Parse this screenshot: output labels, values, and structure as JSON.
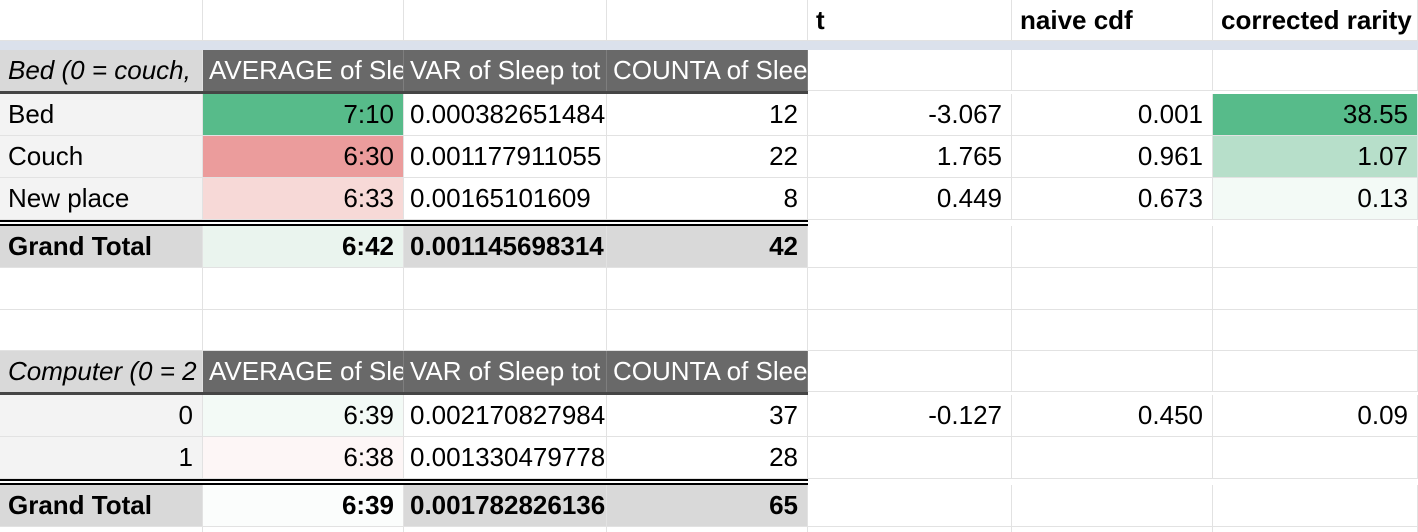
{
  "palette": {
    "pivot_header_bg": "#696969",
    "pivot_title_bg": "#d9d9d9",
    "row_label_bg": "#f3f3f3",
    "grand_total_bg": "#d9d9d9",
    "frozen_band": "#dbe1ec",
    "gridline": "#e2e2e2",
    "pivot_header_border": "#454545",
    "cf_green_strong": "#57bb8a",
    "cf_green_light": "#b7dfca",
    "cf_green_faint": "#eaf4ee",
    "cf_green_vfaint": "#f3faf6",
    "cf_pink_strong": "#eb9c9c",
    "cf_pink_light": "#f7d9d7",
    "cf_pink_vfaint": "#fdf6f6",
    "cf_white_green": "#fbfdfc"
  },
  "stats_columns": {
    "t": "t",
    "naive_cdf": "naive cdf",
    "corrected_rarity": "corrected rarity"
  },
  "pivot1": {
    "title": "Bed (0 = couch,",
    "col_headers": [
      "AVERAGE of Sle",
      "VAR of Sleep tot",
      "COUNTA of Slee"
    ],
    "rows": [
      {
        "label": "Bed",
        "avg": "7:10",
        "variance": "0.000382651484",
        "count": "12",
        "t": "-3.067",
        "naive_cdf": "0.001",
        "corrected_rarity": "38.55"
      },
      {
        "label": "Couch",
        "avg": "6:30",
        "variance": "0.001177911055",
        "count": "22",
        "t": "1.765",
        "naive_cdf": "0.961",
        "corrected_rarity": "1.07"
      },
      {
        "label": "New place",
        "avg": "6:33",
        "variance": "0.00165101609",
        "count": "8",
        "t": "0.449",
        "naive_cdf": "0.673",
        "corrected_rarity": "0.13"
      }
    ],
    "grand_total": {
      "label": "Grand Total",
      "avg": "6:42",
      "variance": "0.001145698314",
      "count": "42"
    }
  },
  "pivot2": {
    "title": "Computer (0 = 2",
    "col_headers": [
      "AVERAGE of Sle",
      "VAR of Sleep tot",
      "COUNTA of Slee"
    ],
    "rows": [
      {
        "label": "0",
        "avg": "6:39",
        "variance": "0.002170827984",
        "count": "37",
        "t": "-0.127",
        "naive_cdf": "0.450",
        "corrected_rarity": "0.09"
      },
      {
        "label": "1",
        "avg": "6:38",
        "variance": "0.001330479778",
        "count": "28"
      }
    ],
    "grand_total": {
      "label": "Grand Total",
      "avg": "6:39",
      "variance": "0.001782826136",
      "count": "65"
    }
  }
}
